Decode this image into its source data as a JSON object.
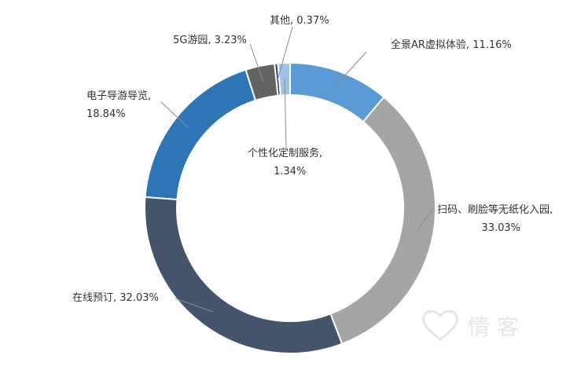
{
  "chart_data": {
    "type": "pie",
    "variant": "donut",
    "title": "",
    "series": [
      {
        "label": "全景AR虚拟体验",
        "value": 11.16,
        "value_text": "11.16%",
        "color": "#5b9bd5"
      },
      {
        "label": "扫码、刷脸等无纸化入园",
        "value": 33.03,
        "value_text": "33.03%",
        "color": "#a5a5a5"
      },
      {
        "label": "在线预订",
        "value": 32.03,
        "value_text": "32.03%",
        "color": "#44546a"
      },
      {
        "label": "电子导游导览",
        "value": 18.84,
        "value_text": "18.84%",
        "color": "#2e75b6"
      },
      {
        "label": "5G游园",
        "value": 3.23,
        "value_text": "3.23%",
        "color": "#636363"
      },
      {
        "label": "其他",
        "value": 0.37,
        "value_text": "0.37%",
        "color": "#264478"
      },
      {
        "label": "个性化定制服务",
        "value": 1.34,
        "value_text": "1.34%",
        "color": "#9dc3e6"
      }
    ],
    "legend": "none",
    "data_labels": "outside-with-leaders"
  },
  "watermark": {
    "text": "情 客"
  }
}
